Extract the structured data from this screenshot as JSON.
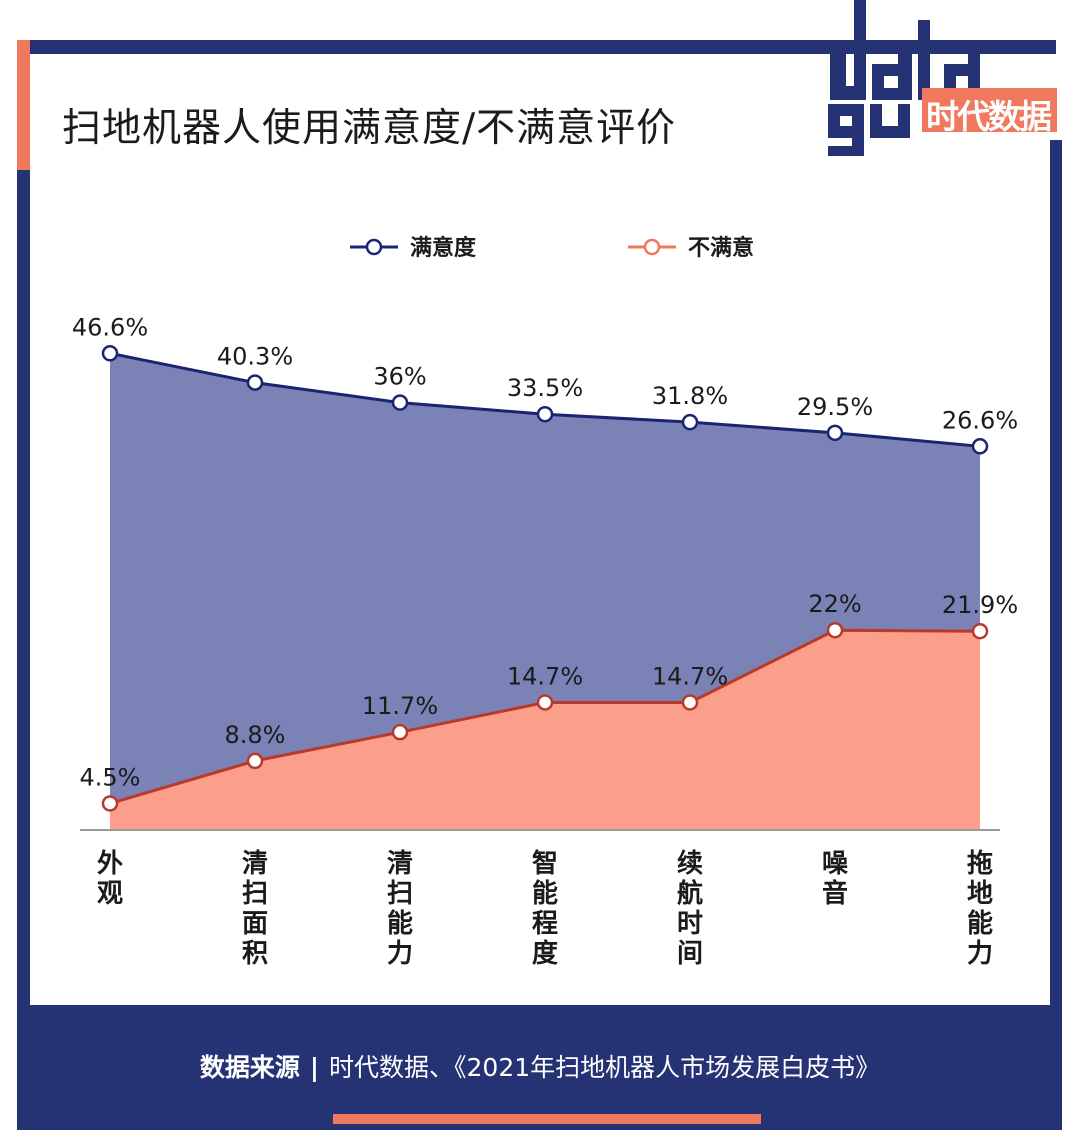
{
  "title": "扫地机器人使用满意度/不满意评价",
  "logo": {
    "brand_text": "时代数据"
  },
  "source": {
    "label": "数据来源",
    "separator": "|",
    "text": "时代数据、《2021年扫地机器人市场发展白皮书》"
  },
  "colors": {
    "satisfied": "#1a2470",
    "satisfied_fill": "#7b83b6",
    "unsatisfied": "#b73a2d",
    "unsatisfied_fill": "#fb9e8a",
    "frame": "#253375",
    "accent": "#f0795d"
  },
  "chart_data": {
    "type": "area",
    "title": "扫地机器人使用满意度/不满意评价",
    "categories": [
      "外观",
      "清扫面积",
      "清扫能力",
      "智能程度",
      "续航时间",
      "噪音",
      "拖地能力"
    ],
    "legend_position": "top-center",
    "grid": false,
    "series": [
      {
        "name": "满意度",
        "values": [
          46.6,
          40.3,
          36,
          33.5,
          31.8,
          29.5,
          26.6
        ],
        "labels": [
          "46.6%",
          "40.3%",
          "36%",
          "33.5%",
          "31.8%",
          "29.5%",
          "26.6%"
        ]
      },
      {
        "name": "不满意",
        "values": [
          4.5,
          8.8,
          11.7,
          14.7,
          14.7,
          22,
          21.9
        ],
        "labels": [
          "4.5%",
          "8.8%",
          "11.7%",
          "14.7%",
          "14.7%",
          "22%",
          "21.9%"
        ]
      }
    ]
  }
}
